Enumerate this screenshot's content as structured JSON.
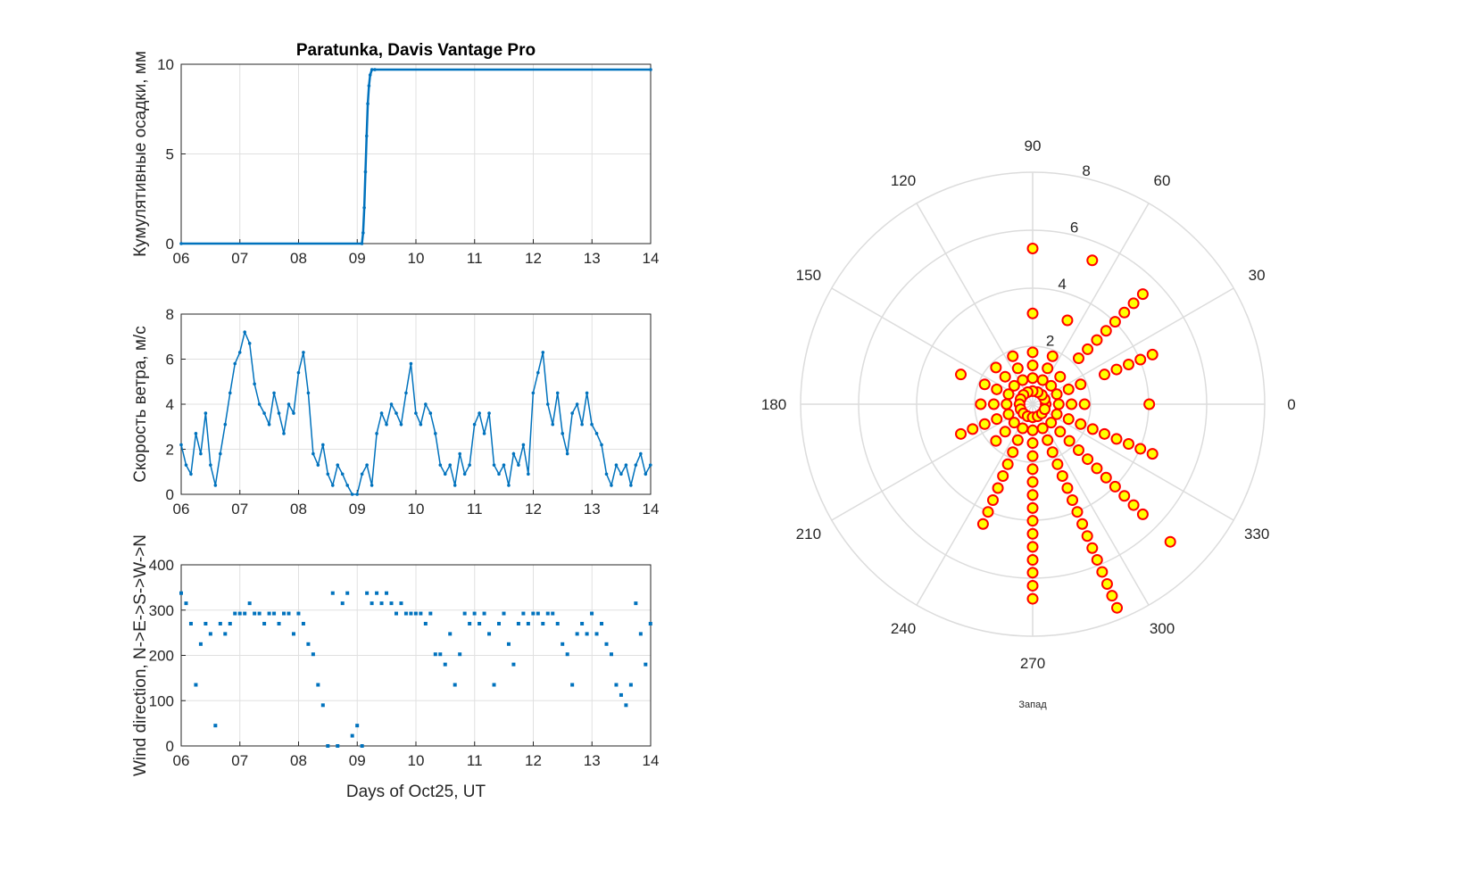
{
  "chart_data": [
    {
      "type": "line",
      "title": "Paratunka, Davis Vantage Pro",
      "ylabel": "Кумулятивные осадки, мм",
      "xlabel": "",
      "xlim": [
        6,
        14
      ],
      "ylim": [
        0,
        10
      ],
      "xticks": [
        "06",
        "07",
        "08",
        "09",
        "10",
        "11",
        "12",
        "13",
        "14"
      ],
      "yticks": [
        0,
        5,
        10
      ],
      "grid": true,
      "color": "#0072bd",
      "x": [
        6,
        9.08,
        9.1,
        9.12,
        9.14,
        9.16,
        9.18,
        9.2,
        9.22,
        9.25,
        9.3,
        14
      ],
      "y": [
        0,
        0,
        0.6,
        2.0,
        4.0,
        6.0,
        7.8,
        8.8,
        9.4,
        9.7,
        9.7,
        9.7
      ]
    },
    {
      "type": "line",
      "ylabel": "Скорость ветра, м/с",
      "xlim": [
        6,
        14
      ],
      "ylim": [
        0,
        8
      ],
      "xticks": [
        "06",
        "07",
        "08",
        "09",
        "10",
        "11",
        "12",
        "13",
        "14"
      ],
      "yticks": [
        0,
        2,
        4,
        6,
        8
      ],
      "grid": true,
      "color": "#0072bd",
      "x_start": 6,
      "x_step_days": 0.0833,
      "values": [
        2.2,
        1.3,
        0.9,
        2.7,
        1.8,
        3.6,
        1.3,
        0.4,
        1.8,
        3.1,
        4.5,
        5.8,
        6.3,
        7.2,
        6.7,
        4.9,
        4.0,
        3.6,
        3.1,
        4.5,
        3.6,
        2.7,
        4.0,
        3.6,
        5.4,
        6.3,
        4.5,
        1.8,
        1.3,
        2.2,
        0.9,
        0.4,
        1.3,
        0.9,
        0.4,
        0.0,
        0.0,
        0.9,
        1.3,
        0.4,
        2.7,
        3.6,
        3.1,
        4.0,
        3.6,
        3.1,
        4.5,
        5.8,
        3.6,
        3.1,
        4.0,
        3.6,
        2.7,
        1.3,
        0.9,
        1.3,
        0.4,
        1.8,
        0.9,
        1.3,
        3.1,
        3.6,
        2.7,
        3.6,
        1.3,
        0.9,
        1.3,
        0.4,
        1.8,
        1.3,
        2.2,
        0.9,
        4.5,
        5.4,
        6.3,
        4.0,
        3.1,
        4.5,
        2.7,
        1.8,
        3.6,
        4.0,
        3.1,
        4.5,
        3.1,
        2.7,
        2.2,
        0.9,
        0.4,
        1.3,
        0.9,
        1.3,
        0.4,
        1.3,
        1.8,
        0.9,
        1.3
      ]
    },
    {
      "type": "scatter",
      "ylabel": "Wind direction, N->E->S->W->N",
      "xlabel": "Days of Oct25, UT",
      "xlim": [
        6,
        14
      ],
      "ylim": [
        0,
        400
      ],
      "xticks": [
        "06",
        "07",
        "08",
        "09",
        "10",
        "11",
        "12",
        "13",
        "14"
      ],
      "yticks": [
        0,
        100,
        200,
        300,
        400
      ],
      "grid": true,
      "color": "#0072bd",
      "x_start": 6,
      "x_step_days": 0.0833,
      "values": [
        337.5,
        315,
        270,
        135,
        225,
        270,
        247.5,
        45,
        270,
        247.5,
        270,
        292.5,
        292.5,
        292.5,
        315,
        292.5,
        292.5,
        270,
        292.5,
        292.5,
        270,
        292.5,
        292.5,
        247.5,
        292.5,
        270,
        225,
        202.5,
        135,
        90,
        0,
        337.5,
        0,
        315,
        337.5,
        22.5,
        45,
        0,
        337.5,
        315,
        337.5,
        315,
        337.5,
        315,
        292.5,
        315,
        292.5,
        292.5,
        292.5,
        292.5,
        270,
        292.5,
        202.5,
        202.5,
        180,
        247.5,
        135,
        202.5,
        292.5,
        270,
        292.5,
        270,
        292.5,
        247.5,
        135,
        270,
        292.5,
        225,
        180,
        270,
        292.5,
        270,
        292.5,
        292.5,
        270,
        292.5,
        292.5,
        270,
        225,
        202.5,
        135,
        247.5,
        270,
        247.5,
        292.5,
        247.5,
        270,
        225,
        202.5,
        135,
        112.5,
        90,
        135,
        315,
        247.5,
        180,
        270
      ]
    },
    {
      "type": "polar-scatter",
      "theta_labels": [
        "0",
        "30",
        "60",
        "90",
        "120",
        "150",
        "180",
        "210",
        "240",
        "270",
        "300",
        "330"
      ],
      "r_labels": [
        "2",
        "4",
        "6",
        "8"
      ],
      "rlim": [
        0,
        8
      ],
      "annotation": "Запад",
      "marker_face": "#ffff00",
      "marker_edge": "#ff0000",
      "series": [
        {
          "dir": 0,
          "speeds": [
            0.45,
            0.9,
            1.34,
            1.79,
            4.02
          ]
        },
        {
          "dir": 22.5,
          "speeds": [
            0.45,
            0.9,
            1.34,
            1.79,
            2.68,
            3.13,
            3.58,
            4.02,
            4.47
          ]
        },
        {
          "dir": 45,
          "speeds": [
            0.45,
            0.9,
            1.34,
            2.24,
            2.68,
            3.13,
            3.58,
            4.02,
            4.47,
            4.92,
            5.37
          ]
        },
        {
          "dir": 67.5,
          "speeds": [
            0.45,
            0.9,
            1.34,
            1.79,
            3.13,
            5.37
          ]
        },
        {
          "dir": 90,
          "speeds": [
            0.45,
            0.9,
            1.34,
            1.79,
            3.13,
            5.37
          ]
        },
        {
          "dir": 112.5,
          "speeds": [
            0.45,
            0.9,
            1.34,
            1.79
          ]
        },
        {
          "dir": 135,
          "speeds": [
            0.45,
            0.9,
            1.34,
            1.79
          ]
        },
        {
          "dir": 157.5,
          "speeds": [
            0.45,
            0.9,
            1.34,
            1.79,
            2.68
          ]
        },
        {
          "dir": 180,
          "speeds": [
            0.45,
            0.9,
            1.34,
            1.79
          ]
        },
        {
          "dir": 202.5,
          "speeds": [
            0.45,
            0.9,
            1.34,
            1.79,
            2.24,
            2.68
          ]
        },
        {
          "dir": 225,
          "speeds": [
            0.45,
            0.9,
            1.34,
            1.79
          ]
        },
        {
          "dir": 247.5,
          "speeds": [
            0.45,
            0.9,
            1.34,
            1.79,
            2.24,
            2.68,
            3.13,
            3.58,
            4.02,
            4.47
          ]
        },
        {
          "dir": 270,
          "speeds": [
            0.45,
            0.9,
            1.34,
            1.79,
            2.24,
            2.68,
            3.13,
            3.58,
            4.02,
            4.47,
            4.92,
            5.37,
            5.81,
            6.26,
            6.71
          ]
        },
        {
          "dir": 292.5,
          "speeds": [
            0.45,
            0.9,
            1.34,
            1.79,
            2.24,
            2.68,
            3.13,
            3.58,
            4.02,
            4.47,
            4.92,
            5.37,
            5.81,
            6.26,
            6.71,
            7.15,
            7.6
          ]
        },
        {
          "dir": 315,
          "speeds": [
            0.45,
            0.9,
            1.34,
            1.79,
            2.24,
            2.68,
            3.13,
            3.58,
            4.02,
            4.47,
            4.92,
            5.37,
            6.71
          ]
        },
        {
          "dir": 337.5,
          "speeds": [
            0.45,
            0.9,
            1.34,
            1.79,
            2.24,
            2.68,
            3.13,
            3.58,
            4.02,
            4.47
          ]
        }
      ]
    }
  ]
}
